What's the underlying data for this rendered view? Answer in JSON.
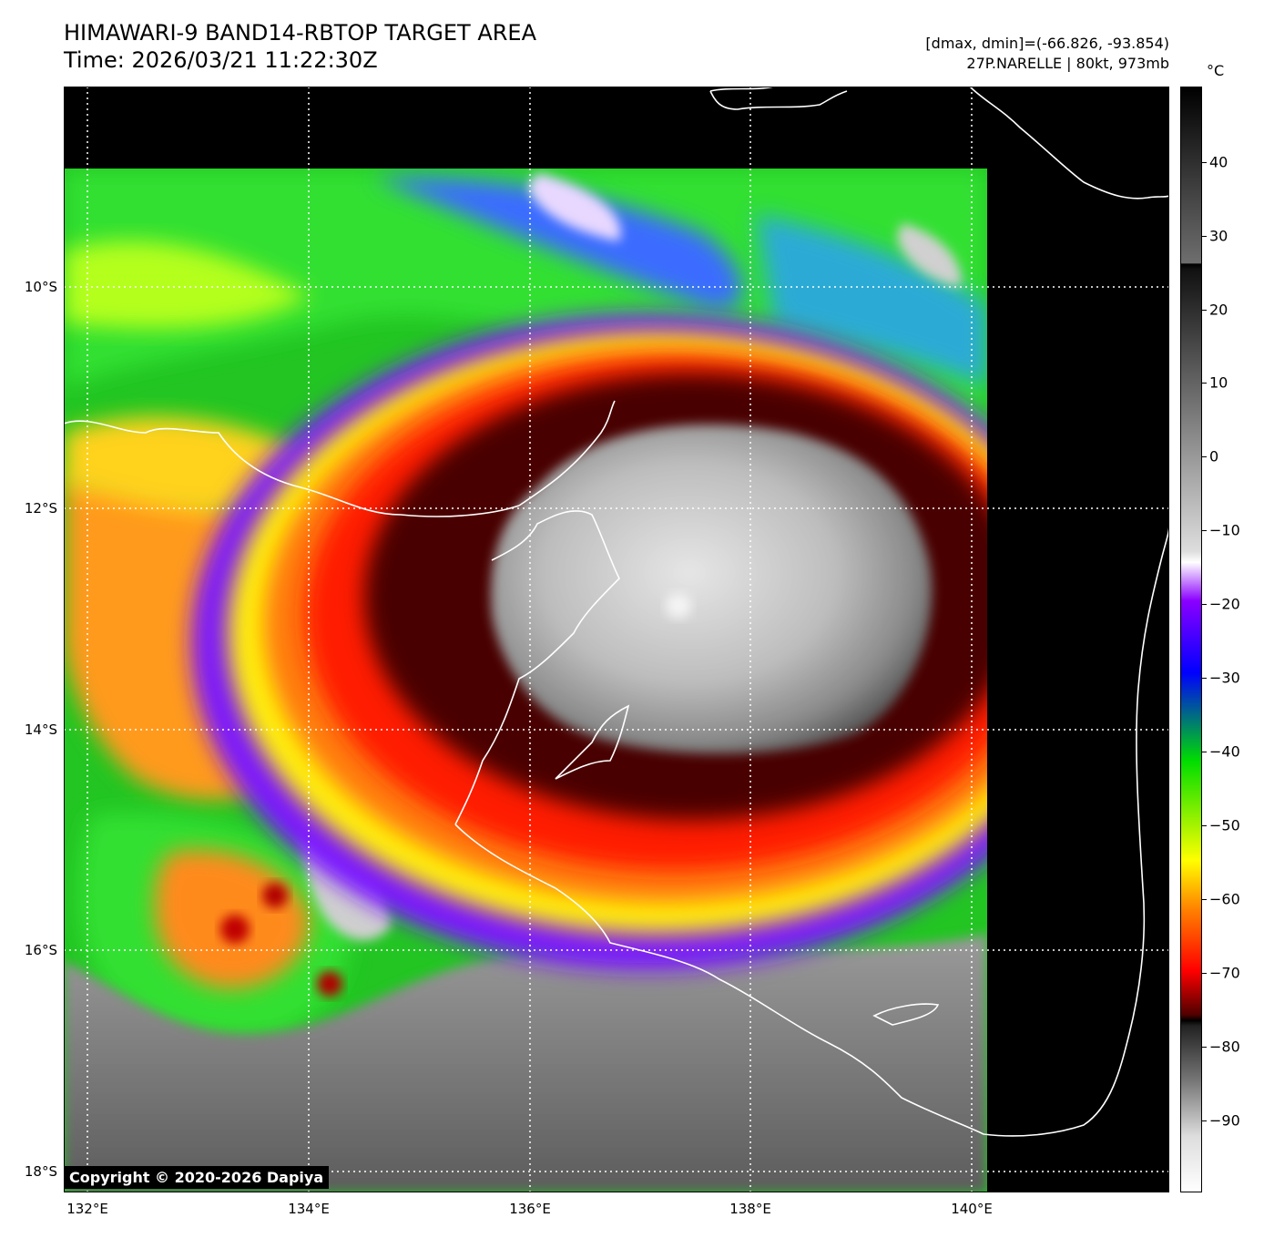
{
  "header": {
    "title": "HIMAWARI-9 BAND14-RBTOP TARGET AREA",
    "time": "Time: 2026/03/21 11:22:30Z",
    "range": "[dmax, dmin]=(-66.826, -93.854)",
    "storm": "27P.NARELLE | 80kt, 973mb"
  },
  "map": {
    "lat_labels": [
      "10°S",
      "12°S",
      "14°S",
      "16°S",
      "18°S"
    ],
    "lon_labels": [
      "132°E",
      "134°E",
      "136°E",
      "138°E",
      "140°E"
    ],
    "copyright": "Copyright © 2020-2026 Dapiya"
  },
  "colorbar": {
    "unit": "°C",
    "ticks": [
      "40",
      "30",
      "20",
      "10",
      "0",
      "−10",
      "−20",
      "−30",
      "−40",
      "−50",
      "−60",
      "−70",
      "−80",
      "−90"
    ],
    "colors": {
      "warm_gray": "#6e6e6e",
      "cold_black": "#000000",
      "white": "#ffffff",
      "violet": "#8a00ff",
      "blue": "#0000ff",
      "green": "#00dd00",
      "yellow": "#ffff00",
      "orange": "#ff8000",
      "red": "#ff0000",
      "dark_red": "#500000"
    }
  }
}
